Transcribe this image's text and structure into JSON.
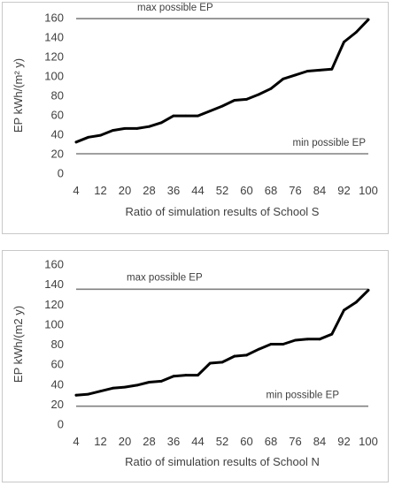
{
  "chart_data": [
    {
      "type": "line",
      "title": "",
      "xlabel": "Ratio of simulation results of School S",
      "ylabel": "EP kWh/(m² y)",
      "ylim": [
        0,
        160
      ],
      "yticks": [
        0,
        20,
        40,
        60,
        80,
        100,
        120,
        140,
        160
      ],
      "xlim": [
        4,
        100
      ],
      "xticks": [
        4,
        12,
        20,
        28,
        36,
        44,
        52,
        60,
        68,
        76,
        84,
        92,
        100
      ],
      "grid": false,
      "series": [
        {
          "color": "#000000",
          "x": [
            4,
            8,
            12,
            16,
            20,
            24,
            28,
            32,
            36,
            40,
            44,
            48,
            52,
            56,
            60,
            64,
            68,
            72,
            76,
            80,
            84,
            88,
            92,
            96,
            100
          ],
          "y": [
            32,
            37,
            39,
            44,
            46,
            46,
            48,
            52,
            59,
            59,
            59,
            64,
            69,
            75,
            76,
            81,
            87,
            97,
            101,
            105,
            106,
            107,
            135,
            145,
            158
          ]
        }
      ],
      "reference_lines": [
        {
          "label": "max possible EP",
          "y": 159,
          "color": "#808080"
        },
        {
          "label": "min possible EP",
          "y": 20,
          "color": "#808080"
        }
      ]
    },
    {
      "type": "line",
      "title": "",
      "xlabel": "Ratio of simulation results of School N",
      "ylabel": "EP kWh/(m2 y)",
      "ylim": [
        0,
        160
      ],
      "yticks": [
        0,
        20,
        40,
        60,
        80,
        100,
        120,
        140,
        160
      ],
      "xlim": [
        4,
        100
      ],
      "xticks": [
        4,
        12,
        20,
        28,
        36,
        44,
        52,
        60,
        68,
        76,
        84,
        92,
        100
      ],
      "grid": false,
      "series": [
        {
          "color": "#000000",
          "x": [
            4,
            8,
            12,
            16,
            20,
            24,
            28,
            32,
            36,
            40,
            44,
            48,
            52,
            56,
            60,
            64,
            68,
            72,
            76,
            80,
            84,
            88,
            92,
            96,
            100
          ],
          "y": [
            29,
            30,
            33,
            36,
            37,
            39,
            42,
            43,
            48,
            49,
            49,
            61,
            62,
            68,
            69,
            75,
            80,
            80,
            84,
            85,
            85,
            90,
            114,
            122,
            134
          ]
        }
      ],
      "reference_lines": [
        {
          "label": "max possible EP",
          "y": 135,
          "color": "#808080"
        },
        {
          "label": "min possible EP",
          "y": 18,
          "color": "#808080"
        }
      ]
    }
  ]
}
